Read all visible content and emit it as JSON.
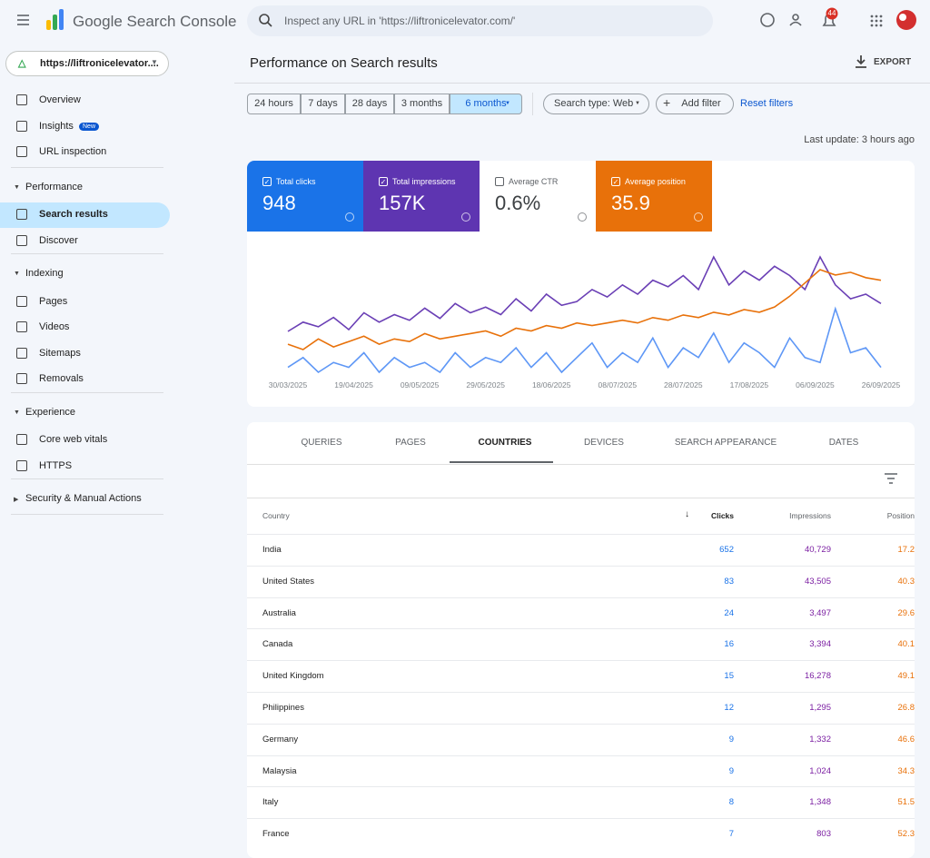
{
  "header": {
    "title": "Google Search Console",
    "search_placeholder": "Inspect any URL in 'https://liftronicelevator.com/'",
    "notification_count": "44"
  },
  "sidebar": {
    "property": "https://liftronicelevator....",
    "items": [
      "Overview",
      "Insights",
      "URL inspection"
    ],
    "insights_badge": "New",
    "sections": [
      {
        "title": "Performance",
        "items": [
          "Search results",
          "Discover"
        ]
      },
      {
        "title": "Indexing",
        "items": [
          "Pages",
          "Videos",
          "Sitemaps",
          "Removals"
        ]
      },
      {
        "title": "Experience",
        "items": [
          "Core web vitals",
          "HTTPS"
        ]
      },
      {
        "title": "Security & Manual Actions",
        "items": []
      }
    ]
  },
  "main": {
    "title": "Performance on Search results",
    "export": "EXPORT",
    "date_ranges": [
      "24 hours",
      "7 days",
      "28 days",
      "3 months",
      "6 months"
    ],
    "search_type": "Search type: Web",
    "add_filter": "Add filter",
    "reset_filters": "Reset filters",
    "last_update": "Last update: 3 hours ago"
  },
  "metrics": [
    {
      "label": "Total clicks",
      "value": "948",
      "color": "#1a73e8",
      "checked": true
    },
    {
      "label": "Total impressions",
      "value": "157K",
      "color": "#5e35b1",
      "checked": true
    },
    {
      "label": "Average CTR",
      "value": "0.6%",
      "color": "#ffffff",
      "checked": false
    },
    {
      "label": "Average position",
      "value": "35.9",
      "color": "#e8710a",
      "checked": true
    }
  ],
  "chart_data": {
    "type": "line",
    "xticks": [
      "30/03/2025",
      "19/04/2025",
      "09/05/2025",
      "29/05/2025",
      "18/06/2025",
      "08/07/2025",
      "28/07/2025",
      "17/08/2025",
      "06/09/2025",
      "26/09/2025"
    ],
    "series": [
      {
        "color": "#5e97f6",
        "values": [
          3,
          5,
          2,
          4,
          3,
          6,
          2,
          5,
          3,
          4,
          2,
          6,
          3,
          5,
          4,
          7,
          3,
          6,
          2,
          5,
          8,
          3,
          6,
          4,
          9,
          3,
          7,
          5,
          10,
          4,
          8,
          6,
          3,
          9,
          5,
          4,
          15,
          6,
          7,
          3
        ]
      },
      {
        "color": "#6a3fb5",
        "values": [
          500,
          600,
          550,
          650,
          520,
          700,
          600,
          680,
          620,
          750,
          640,
          800,
          700,
          760,
          680,
          850,
          720,
          900,
          780,
          820,
          950,
          870,
          1000,
          900,
          1050,
          980,
          1100,
          950,
          1300,
          1000,
          1150,
          1050,
          1200,
          1100,
          950,
          1300,
          1000,
          850,
          900,
          800
        ]
      },
      {
        "color": "#e8710a",
        "y_reversed": true,
        "values": [
          48,
          50,
          46,
          49,
          47,
          45,
          48,
          46,
          47,
          44,
          46,
          45,
          44,
          43,
          45,
          42,
          43,
          41,
          42,
          40,
          41,
          40,
          39,
          40,
          38,
          39,
          37,
          38,
          36,
          37,
          35,
          36,
          34,
          30,
          25,
          20,
          22,
          21,
          23,
          24
        ]
      }
    ]
  },
  "tabs": [
    "QUERIES",
    "PAGES",
    "COUNTRIES",
    "DEVICES",
    "SEARCH APPEARANCE",
    "DATES"
  ],
  "table": {
    "columns": [
      "Country",
      "Clicks",
      "Impressions",
      "Position"
    ],
    "rows": [
      [
        "India",
        "652",
        "40,729",
        "17.2"
      ],
      [
        "United States",
        "83",
        "43,505",
        "40.3"
      ],
      [
        "Australia",
        "24",
        "3,497",
        "29.6"
      ],
      [
        "Canada",
        "16",
        "3,394",
        "40.1"
      ],
      [
        "United Kingdom",
        "15",
        "16,278",
        "49.1"
      ],
      [
        "Philippines",
        "12",
        "1,295",
        "26.8"
      ],
      [
        "Germany",
        "9",
        "1,332",
        "46.6"
      ],
      [
        "Malaysia",
        "9",
        "1,024",
        "34.3"
      ],
      [
        "Italy",
        "8",
        "1,348",
        "51.5"
      ],
      [
        "France",
        "7",
        "803",
        "52.3"
      ]
    ]
  }
}
